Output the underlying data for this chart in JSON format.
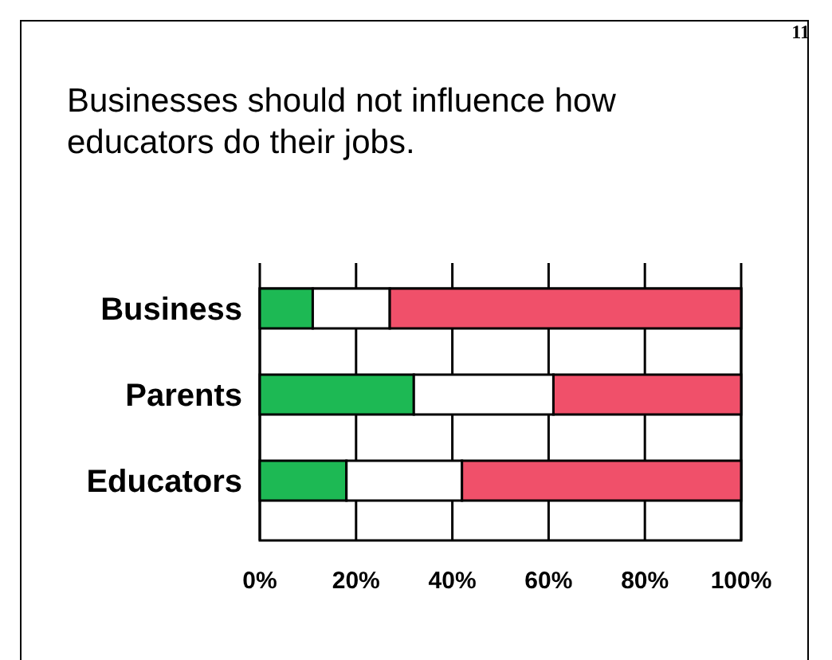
{
  "chart_data": {
    "type": "bar",
    "orientation": "horizontal",
    "stacked": true,
    "title": "Businesses should not influence how educators do their jobs.",
    "annotations": [
      "11"
    ],
    "categories": [
      "Business",
      "Parents",
      "Educators"
    ],
    "series": [
      {
        "color": "#1db954",
        "values": [
          11,
          32,
          18
        ]
      },
      {
        "color": "#ffffff",
        "values": [
          16,
          29,
          24
        ]
      },
      {
        "color": "#f0506a",
        "values": [
          73,
          39,
          58
        ]
      }
    ],
    "xlim": [
      0,
      100
    ],
    "xticks": [
      {
        "value": 0,
        "label": "0%"
      },
      {
        "value": 20,
        "label": "20%"
      },
      {
        "value": 40,
        "label": "40%"
      },
      {
        "value": 60,
        "label": "60%"
      },
      {
        "value": 80,
        "label": "80%"
      },
      {
        "value": 100,
        "label": "100%"
      }
    ],
    "grid": "x"
  }
}
